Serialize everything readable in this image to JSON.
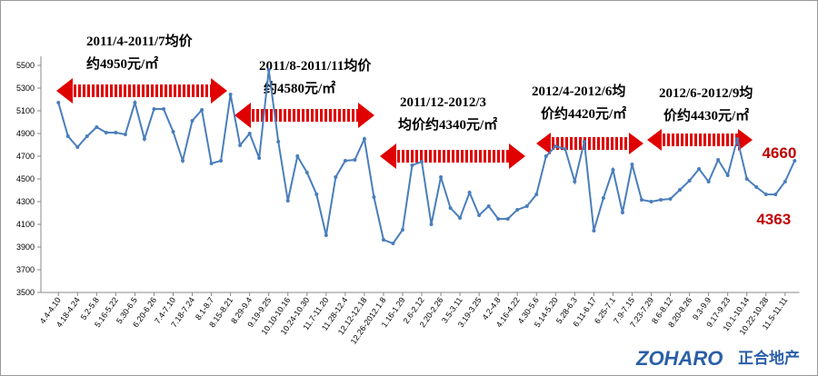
{
  "chart_data": {
    "type": "line",
    "color": "#4a7ebb",
    "label_color": "#c00000",
    "categories": [
      "4.4-4.10",
      null,
      "4.18-4.24",
      null,
      "5.2-5.8",
      null,
      "5.16-5.22",
      null,
      "5.30-6.5",
      null,
      "6.20-6.26",
      null,
      "7.4-7.10",
      null,
      "7.18-7.24",
      null,
      "8.1-8.7",
      null,
      "8.15-8.21",
      null,
      "8.29-9.4",
      null,
      "9.19-9.25",
      null,
      "10.10-10.16",
      null,
      "10.24-10.30",
      null,
      "11.7-11.20",
      null,
      "11.28-12.4",
      null,
      "12.12-12.18",
      null,
      "12.26-2012.1.8",
      null,
      "1.16-1.29",
      null,
      "2.6-2.12",
      null,
      "2.20-2.26",
      null,
      "3.5-3.11",
      null,
      "3.19-3.25",
      null,
      "4.2-4.8",
      null,
      "4.16-4.22",
      null,
      "4.30-5.6",
      null,
      "5.14-5.20",
      null,
      "5.28-6.3",
      null,
      "6.11-6.17",
      null,
      "6.25-7.1",
      null,
      "7.9-7.15",
      null,
      "7.23-7.29",
      null,
      "8.6-8.12",
      null,
      "8.20-8.26",
      null,
      "9.3-9.9",
      null,
      "9.17-9.23",
      null,
      "10.1-10.14",
      null,
      "10.22-10.28",
      null,
      "11.5-11.11",
      null
    ],
    "values": [
      5172,
      4876,
      4780,
      4876,
      4956,
      4908,
      4908,
      4892,
      5172,
      4852,
      5116,
      5116,
      4916,
      4660,
      5012,
      5108,
      4636,
      4660,
      5244,
      4796,
      4900,
      4684,
      5460,
      4828,
      4308,
      4700,
      4556,
      4364,
      4004,
      4516,
      4660,
      4668,
      4852,
      4340,
      3964,
      3932,
      4052,
      4620,
      4652,
      4100,
      4516,
      4244,
      4156,
      4380,
      4180,
      4260,
      4148,
      4148,
      4228,
      4260,
      4364,
      4700,
      4788,
      4764,
      4476,
      4828,
      4044,
      4332,
      4580,
      4204,
      4628,
      4316,
      4300,
      4316,
      4324,
      4404,
      4484,
      4588,
      4476,
      4668,
      4532,
      4852,
      4500,
      4428,
      4364,
      4363,
      4476,
      4660
    ],
    "ylim": [
      3500,
      5500
    ],
    "yticks": [
      3500,
      3700,
      3900,
      4100,
      4300,
      4500,
      4700,
      4900,
      5100,
      5300,
      5500
    ],
    "labeled_points": [
      75,
      77
    ],
    "annotations": [
      [
        "2011/4-2011/7均价",
        "约4950元/㎡"
      ],
      [
        "2011/8-2011/11均价",
        "约4580元/㎡"
      ],
      [
        "2011/12-2012/3",
        "均价约4340元/㎡"
      ],
      [
        "2012/4-2012/6均",
        "价约4420元/㎡"
      ],
      [
        "2012/6-2012/9均",
        "价约4430元/㎡"
      ]
    ],
    "logo": [
      "ZOHARO",
      "正合地产"
    ]
  }
}
